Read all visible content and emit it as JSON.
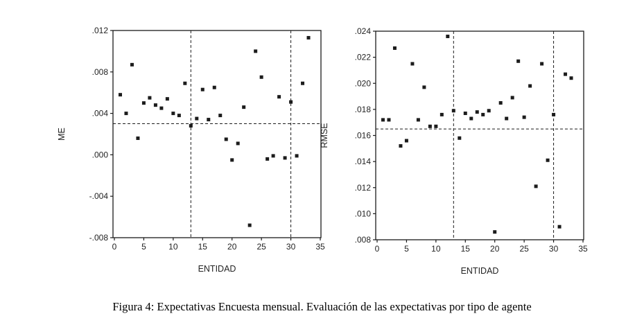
{
  "figure": {
    "caption": "Figura 4: Expectativas Encuesta mensual. Evaluación de las expectativas por tipo de agente"
  },
  "chart_data": [
    {
      "type": "scatter",
      "name": "me-by-entity",
      "xlabel": "ENTIDAD",
      "ylabel": "ME",
      "xlim": [
        0,
        35
      ],
      "ylim": [
        -0.008,
        0.012
      ],
      "grid": false,
      "legend": "none",
      "marker": "square",
      "marker_color": "#1c1c1c",
      "xticks": [
        0,
        5,
        10,
        15,
        20,
        25,
        30,
        35
      ],
      "xtick_labels": [
        "0",
        "5",
        "10",
        "15",
        "20",
        "25",
        "30",
        "35"
      ],
      "yticks": [
        0.012,
        0.008,
        0.004,
        0.0,
        -0.004,
        -0.008
      ],
      "ytick_labels": [
        ".012",
        ".008",
        ".004",
        ".000",
        "-.004",
        "-.008"
      ],
      "reference_lines": {
        "horizontal": 0.003,
        "vertical": [
          13,
          30
        ]
      },
      "x": [
        1,
        2,
        3,
        4,
        5,
        6,
        7,
        8,
        9,
        10,
        11,
        12,
        13,
        14,
        15,
        16,
        17,
        18,
        19,
        20,
        21,
        22,
        23,
        24,
        25,
        26,
        27,
        28,
        29,
        30,
        31,
        32,
        33
      ],
      "y": [
        0.0058,
        0.004,
        0.0087,
        0.0016,
        0.005,
        0.0055,
        0.0048,
        0.0045,
        0.0054,
        0.004,
        0.0038,
        0.0069,
        0.0028,
        0.0035,
        0.0063,
        0.0034,
        0.0065,
        0.0038,
        0.0015,
        -0.0005,
        0.0011,
        0.0046,
        -0.0068,
        0.01,
        0.0075,
        -0.0004,
        -0.0001,
        0.0056,
        -0.0003,
        0.0051,
        -0.0001,
        0.0069,
        0.0113
      ]
    },
    {
      "type": "scatter",
      "name": "rmse-by-entity",
      "xlabel": "ENTIDAD",
      "ylabel": "RMSE",
      "xlim": [
        0,
        35
      ],
      "ylim": [
        0.008,
        0.024
      ],
      "grid": false,
      "legend": "none",
      "marker": "square",
      "marker_color": "#1c1c1c",
      "xticks": [
        0,
        5,
        10,
        15,
        20,
        25,
        30,
        35
      ],
      "xtick_labels": [
        "0",
        "5",
        "10",
        "15",
        "20",
        "25",
        "30",
        "35"
      ],
      "yticks": [
        0.024,
        0.022,
        0.02,
        0.018,
        0.016,
        0.014,
        0.012,
        0.01,
        0.008
      ],
      "ytick_labels": [
        ".024",
        ".022",
        ".020",
        ".018",
        ".016",
        ".014",
        ".012",
        ".010",
        ".008"
      ],
      "reference_lines": {
        "horizontal": 0.0165,
        "vertical": [
          13,
          30
        ]
      },
      "x": [
        1,
        2,
        3,
        4,
        5,
        6,
        7,
        8,
        9,
        10,
        11,
        12,
        13,
        14,
        15,
        16,
        17,
        18,
        19,
        20,
        21,
        22,
        23,
        24,
        25,
        26,
        27,
        28,
        29,
        30,
        31,
        32,
        33
      ],
      "y": [
        0.0172,
        0.0172,
        0.0227,
        0.0152,
        0.0156,
        0.0215,
        0.0172,
        0.0197,
        0.0167,
        0.0167,
        0.0176,
        0.0236,
        0.0179,
        0.0158,
        0.0177,
        0.0173,
        0.0178,
        0.0176,
        0.0179,
        0.0086,
        0.0185,
        0.0173,
        0.0189,
        0.0217,
        0.0174,
        0.0198,
        0.0121,
        0.0215,
        0.0141,
        0.0176,
        0.009,
        0.0207,
        0.0204
      ]
    }
  ]
}
